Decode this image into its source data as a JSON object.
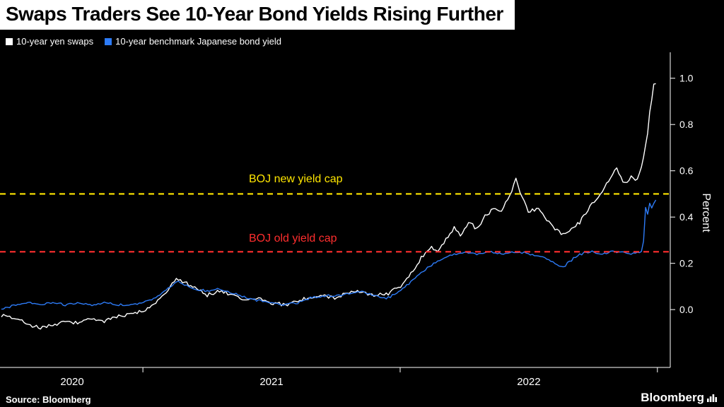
{
  "source": "Source: Bloomberg",
  "brand": "Bloomberg",
  "chart_data": {
    "type": "line",
    "title": "Swaps Traders See 10-Year Bond Yields Rising Further",
    "ylabel": "Percent",
    "x_domain": [
      2020.45,
      2023.05
    ],
    "y_domain": [
      -0.25,
      1.1
    ],
    "y_ticks": [
      0.0,
      0.2,
      0.4,
      0.6,
      0.8,
      1.0
    ],
    "x_tick_years": [
      2020,
      2021,
      2022
    ],
    "grid": false,
    "legend_position": "top-left",
    "reference_lines": [
      {
        "value": 0.5,
        "color": "#ffe600",
        "label": "BOJ new yield cap"
      },
      {
        "value": 0.25,
        "color": "#ff2e2e",
        "label": "BOJ old yield cap"
      }
    ],
    "series": [
      {
        "name": "10-year yen swaps",
        "color": "#ffffff",
        "noise": 0.012,
        "points": [
          [
            2020.45,
            -0.02
          ],
          [
            2020.5,
            -0.04
          ],
          [
            2020.55,
            -0.06
          ],
          [
            2020.6,
            -0.08
          ],
          [
            2020.65,
            -0.07
          ],
          [
            2020.7,
            -0.05
          ],
          [
            2020.75,
            -0.06
          ],
          [
            2020.8,
            -0.04
          ],
          [
            2020.85,
            -0.05
          ],
          [
            2020.9,
            -0.03
          ],
          [
            2020.95,
            -0.02
          ],
          [
            2021.0,
            -0.01
          ],
          [
            2021.05,
            0.03
          ],
          [
            2021.1,
            0.09
          ],
          [
            2021.13,
            0.14
          ],
          [
            2021.16,
            0.12
          ],
          [
            2021.2,
            0.1
          ],
          [
            2021.25,
            0.06
          ],
          [
            2021.3,
            0.08
          ],
          [
            2021.35,
            0.06
          ],
          [
            2021.4,
            0.04
          ],
          [
            2021.45,
            0.05
          ],
          [
            2021.5,
            0.03
          ],
          [
            2021.55,
            0.02
          ],
          [
            2021.6,
            0.04
          ],
          [
            2021.65,
            0.05
          ],
          [
            2021.7,
            0.06
          ],
          [
            2021.75,
            0.05
          ],
          [
            2021.8,
            0.07
          ],
          [
            2021.85,
            0.08
          ],
          [
            2021.9,
            0.06
          ],
          [
            2021.95,
            0.07
          ],
          [
            2022.0,
            0.1
          ],
          [
            2022.04,
            0.15
          ],
          [
            2022.08,
            0.22
          ],
          [
            2022.12,
            0.27
          ],
          [
            2022.15,
            0.25
          ],
          [
            2022.18,
            0.31
          ],
          [
            2022.21,
            0.35
          ],
          [
            2022.24,
            0.32
          ],
          [
            2022.27,
            0.38
          ],
          [
            2022.3,
            0.35
          ],
          [
            2022.33,
            0.4
          ],
          [
            2022.36,
            0.44
          ],
          [
            2022.39,
            0.42
          ],
          [
            2022.42,
            0.48
          ],
          [
            2022.45,
            0.56
          ],
          [
            2022.47,
            0.5
          ],
          [
            2022.5,
            0.42
          ],
          [
            2022.53,
            0.44
          ],
          [
            2022.56,
            0.4
          ],
          [
            2022.6,
            0.35
          ],
          [
            2022.63,
            0.32
          ],
          [
            2022.66,
            0.34
          ],
          [
            2022.7,
            0.38
          ],
          [
            2022.73,
            0.43
          ],
          [
            2022.76,
            0.47
          ],
          [
            2022.79,
            0.52
          ],
          [
            2022.82,
            0.57
          ],
          [
            2022.84,
            0.62
          ],
          [
            2022.86,
            0.56
          ],
          [
            2022.88,
            0.54
          ],
          [
            2022.9,
            0.58
          ],
          [
            2022.92,
            0.55
          ],
          [
            2022.94,
            0.62
          ],
          [
            2022.96,
            0.75
          ],
          [
            2022.97,
            0.85
          ],
          [
            2022.98,
            0.93
          ],
          [
            2022.99,
            1.0
          ],
          [
            2023.0,
            0.96
          ]
        ]
      },
      {
        "name": "10-year benchmark Japanese bond yield",
        "color": "#2d7bf7",
        "noise": 0.006,
        "points": [
          [
            2020.45,
            0.0
          ],
          [
            2020.5,
            0.02
          ],
          [
            2020.55,
            0.03
          ],
          [
            2020.6,
            0.02
          ],
          [
            2020.65,
            0.03
          ],
          [
            2020.7,
            0.02
          ],
          [
            2020.75,
            0.03
          ],
          [
            2020.8,
            0.02
          ],
          [
            2020.85,
            0.03
          ],
          [
            2020.9,
            0.02
          ],
          [
            2020.95,
            0.02
          ],
          [
            2021.0,
            0.03
          ],
          [
            2021.05,
            0.05
          ],
          [
            2021.1,
            0.09
          ],
          [
            2021.13,
            0.12
          ],
          [
            2021.16,
            0.11
          ],
          [
            2021.2,
            0.09
          ],
          [
            2021.25,
            0.08
          ],
          [
            2021.3,
            0.09
          ],
          [
            2021.35,
            0.07
          ],
          [
            2021.4,
            0.05
          ],
          [
            2021.45,
            0.04
          ],
          [
            2021.5,
            0.03
          ],
          [
            2021.55,
            0.02
          ],
          [
            2021.6,
            0.03
          ],
          [
            2021.65,
            0.05
          ],
          [
            2021.7,
            0.06
          ],
          [
            2021.75,
            0.06
          ],
          [
            2021.8,
            0.07
          ],
          [
            2021.85,
            0.08
          ],
          [
            2021.9,
            0.06
          ],
          [
            2021.95,
            0.05
          ],
          [
            2022.0,
            0.08
          ],
          [
            2022.04,
            0.12
          ],
          [
            2022.08,
            0.16
          ],
          [
            2022.12,
            0.19
          ],
          [
            2022.15,
            0.21
          ],
          [
            2022.18,
            0.23
          ],
          [
            2022.21,
            0.24
          ],
          [
            2022.25,
            0.25
          ],
          [
            2022.3,
            0.24
          ],
          [
            2022.35,
            0.25
          ],
          [
            2022.4,
            0.24
          ],
          [
            2022.45,
            0.25
          ],
          [
            2022.5,
            0.24
          ],
          [
            2022.55,
            0.23
          ],
          [
            2022.6,
            0.2
          ],
          [
            2022.63,
            0.18
          ],
          [
            2022.66,
            0.21
          ],
          [
            2022.7,
            0.24
          ],
          [
            2022.74,
            0.25
          ],
          [
            2022.78,
            0.24
          ],
          [
            2022.82,
            0.25
          ],
          [
            2022.86,
            0.25
          ],
          [
            2022.9,
            0.24
          ],
          [
            2022.93,
            0.25
          ],
          [
            2022.945,
            0.25
          ],
          [
            2022.95,
            0.47
          ],
          [
            2022.96,
            0.4
          ],
          [
            2022.97,
            0.46
          ],
          [
            2022.98,
            0.43
          ],
          [
            2022.99,
            0.48
          ],
          [
            2023.0,
            0.46
          ]
        ]
      }
    ]
  }
}
